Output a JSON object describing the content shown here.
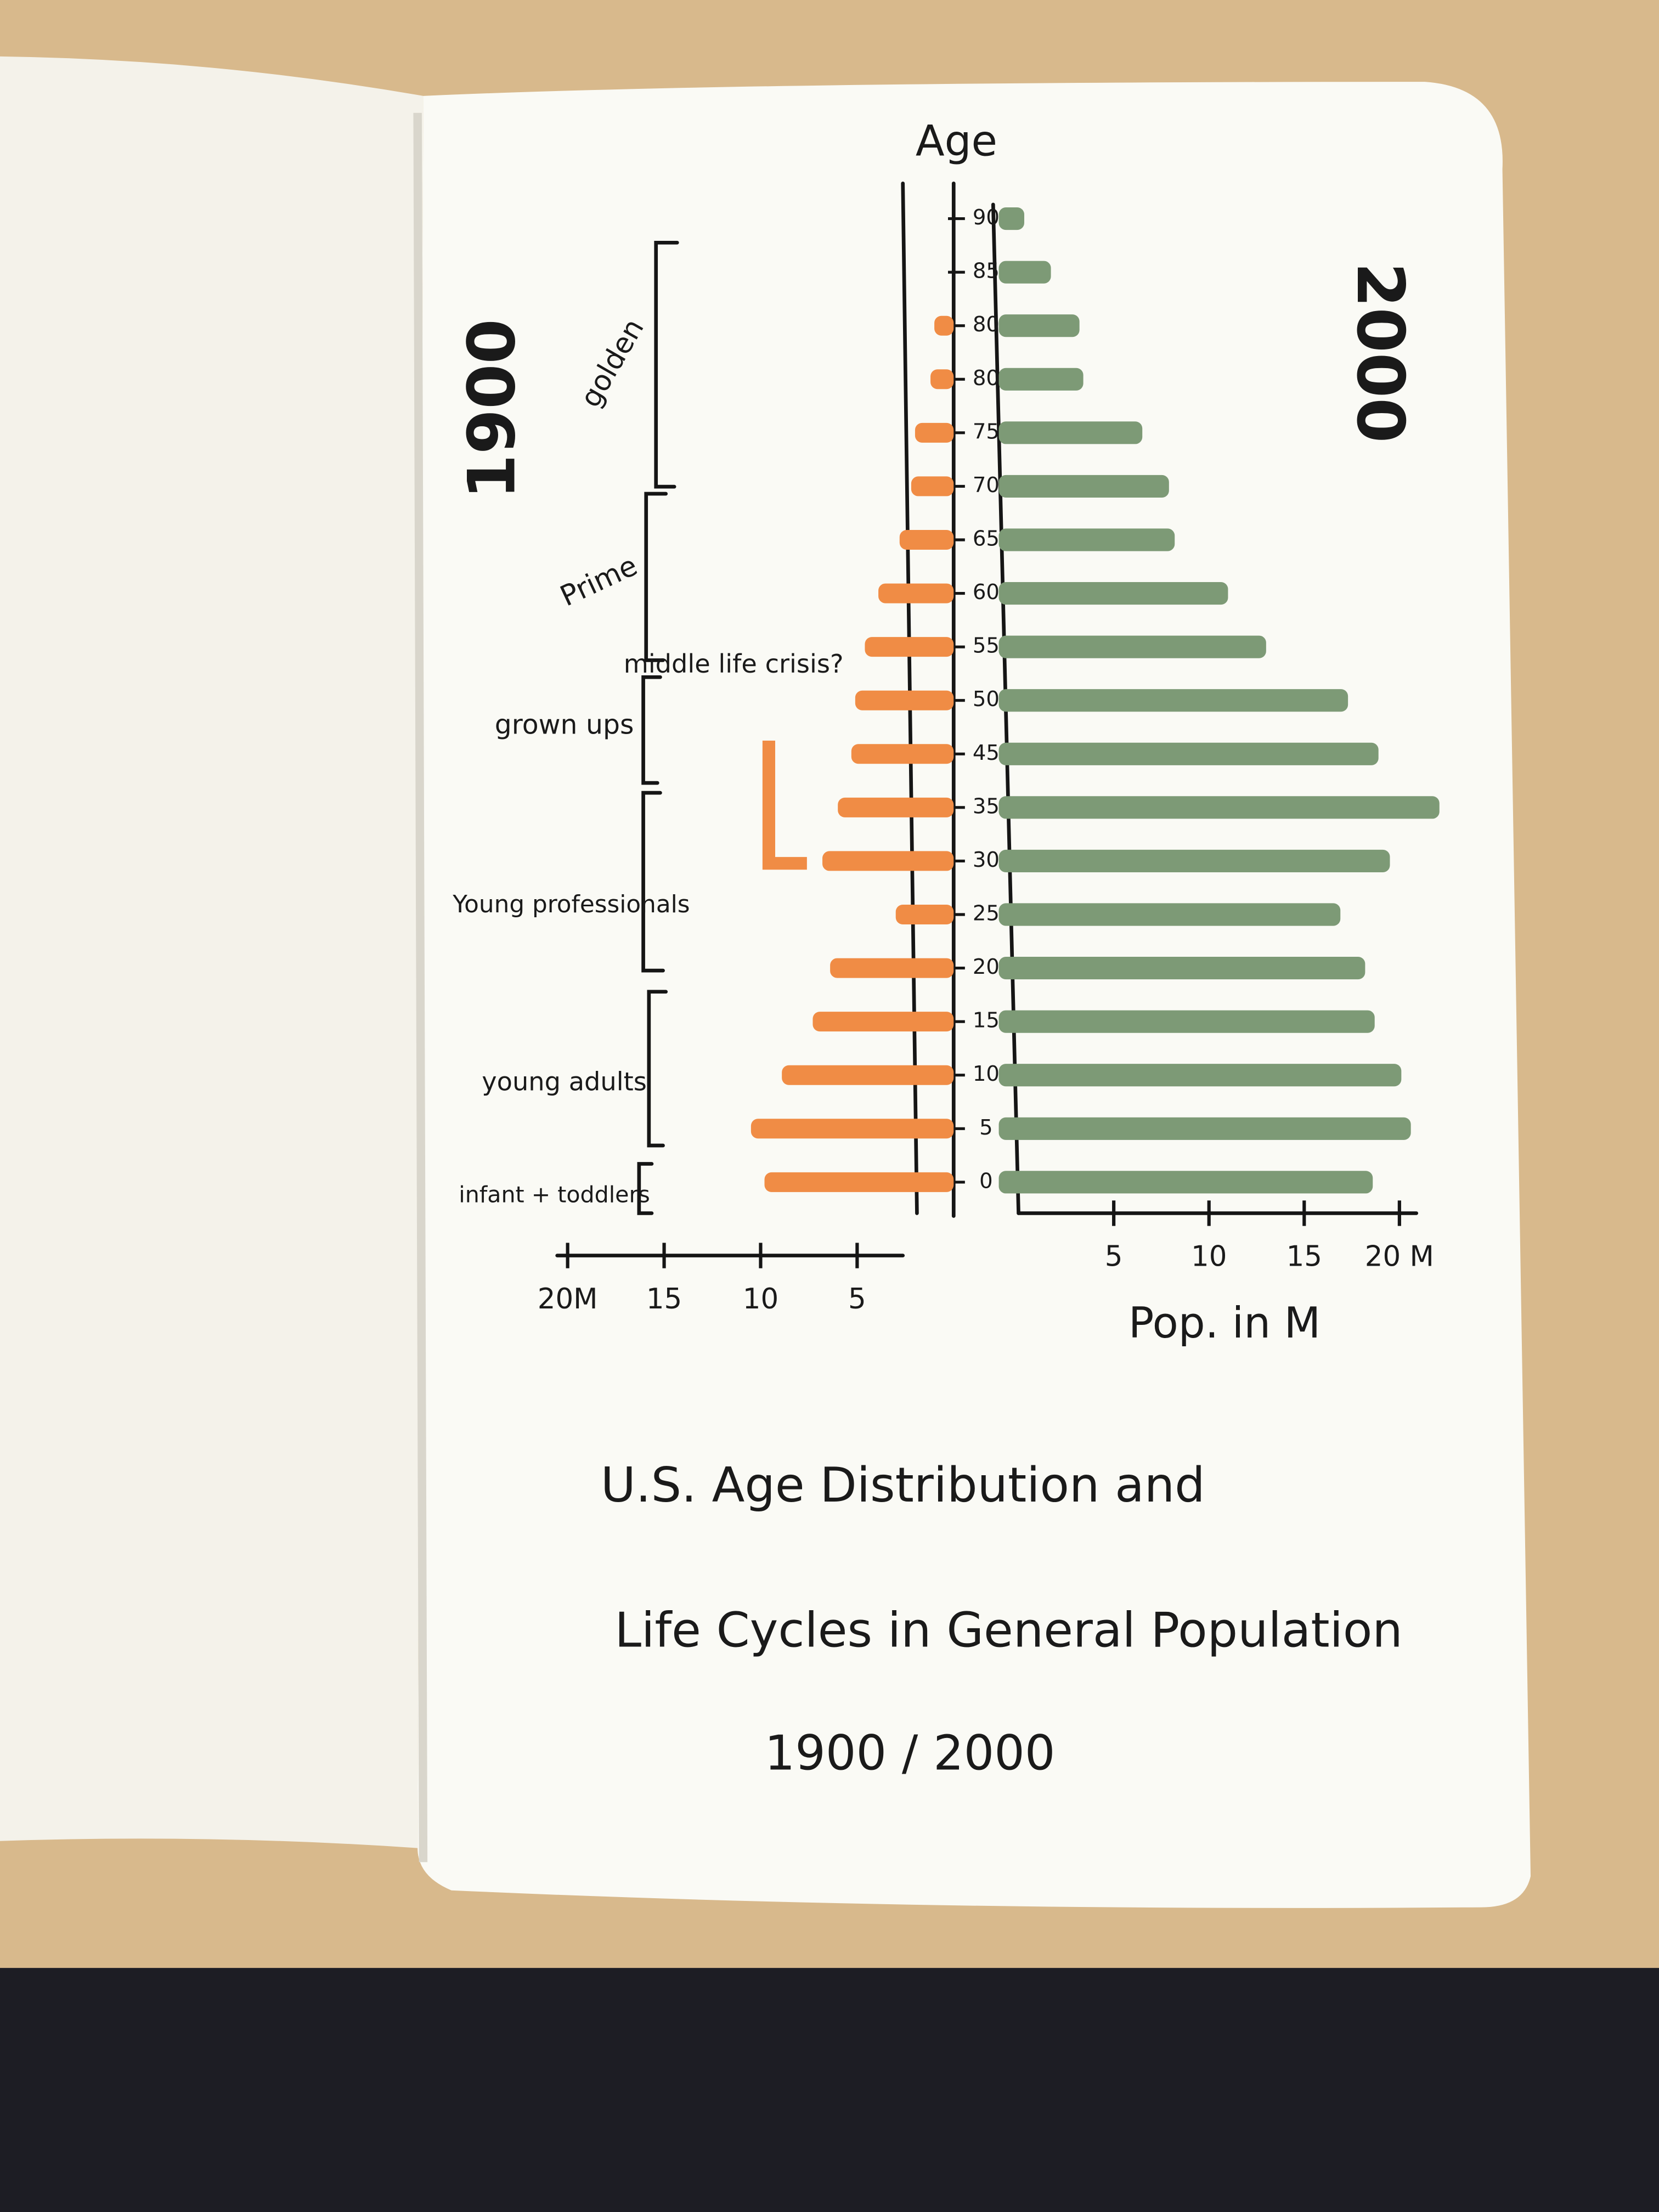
{
  "chart_data": {
    "type": "pyramid",
    "title_lines": [
      "U.S. Age Distribution and",
      "Life Cycles in General Population",
      "1900 / 2000"
    ],
    "y_label": "Age",
    "x_label": "Pop. in M",
    "categories": [
      "0",
      "5",
      "10",
      "15",
      "20",
      "25",
      "30",
      "35",
      "45",
      "50",
      "55",
      "60",
      "65",
      "70",
      "75",
      "80",
      "80",
      "85",
      "90"
    ],
    "series": [
      {
        "name": "1900",
        "color": "#f08c45",
        "side": "left",
        "values": [
          9.8,
          10.5,
          8.9,
          7.3,
          6.4,
          3,
          6.8,
          6,
          5.3,
          5.1,
          4.6,
          3.9,
          2.8,
          2.2,
          2,
          1.2,
          1,
          0,
          0
        ]
      },
      {
        "name": "2000",
        "color": "#7d9a76",
        "side": "right",
        "values": [
          18.6,
          20.6,
          20.1,
          18.7,
          18.2,
          16.9,
          19.5,
          22.1,
          18.9,
          17.3,
          13,
          11,
          8.2,
          7.9,
          6.5,
          3.4,
          3.2,
          1.7,
          0.3
        ]
      }
    ],
    "xlim": [
      0,
      22
    ],
    "xticks_left": [
      {
        "value": 20,
        "label": "20M"
      },
      15,
      10,
      5
    ],
    "xticks_right": [
      5,
      10,
      15,
      {
        "value": 20,
        "label": "20 M"
      }
    ],
    "grid": false,
    "annotations": {
      "stages": [
        "golden",
        "Prime",
        "grown ups",
        "Young professionals",
        "young adults",
        "infant + toddlers"
      ],
      "note": "middle life crisis?"
    }
  }
}
